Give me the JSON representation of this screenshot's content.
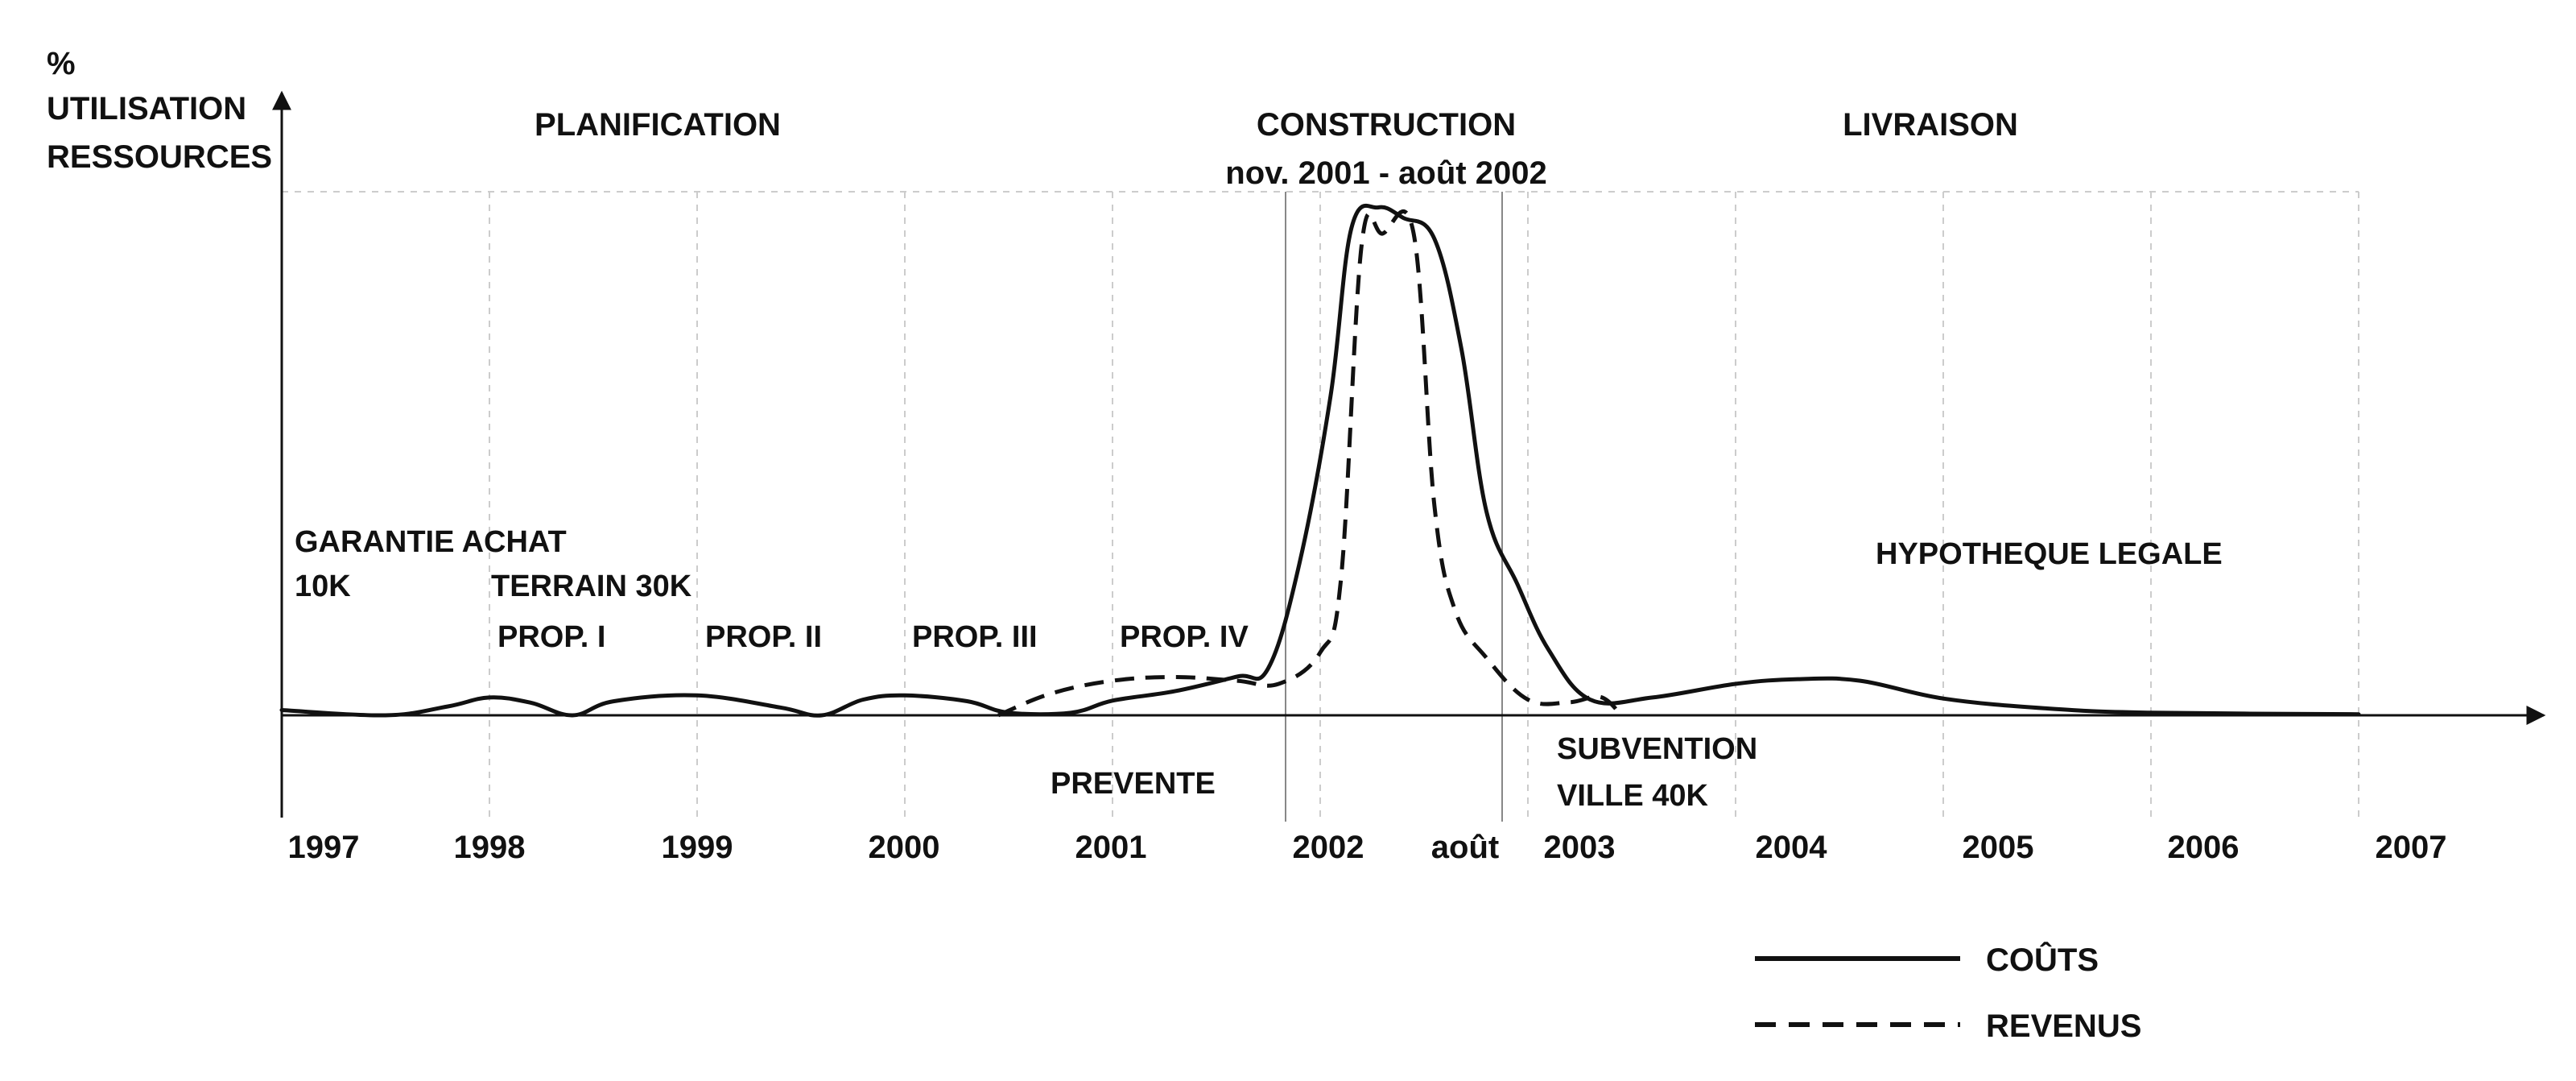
{
  "chart_data": {
    "type": "line",
    "ylabel": [
      "%",
      "UTILISATION",
      "RESSOURCES"
    ],
    "x_ticks": [
      "1997",
      "1998",
      "1999",
      "2000",
      "2001",
      "2002",
      "août",
      "2003",
      "2004",
      "2005",
      "2006",
      "2007"
    ],
    "xlim": [
      1997,
      2007
    ],
    "ylim": [
      0,
      100
    ],
    "grid": true,
    "legend_position": "bottom-right",
    "phases": [
      {
        "label": "PLANIFICATION",
        "sub": ""
      },
      {
        "label": "CONSTRUCTION",
        "sub": "nov. 2001 - août 2002"
      },
      {
        "label": "LIVRAISON",
        "sub": ""
      }
    ],
    "annotations": {
      "garantie_1": "GARANTIE ACHAT",
      "garantie_2": "10K",
      "terrain": "TERRAIN 30K",
      "prop1": "PROP. I",
      "prop2": "PROP. II",
      "prop3": "PROP. III",
      "prop4": "PROP. IV",
      "prevente": "PREVENTE",
      "subvention_1": "SUBVENTION",
      "subvention_2": "VILLE 40K",
      "hypotheque": "HYPOTHEQUE LEGALE"
    },
    "series": [
      {
        "name": "COÛTS",
        "style": "solid",
        "color": "#111111",
        "x": [
          1997.0,
          1997.5,
          1997.8,
          1998.0,
          1998.2,
          1998.4,
          1998.6,
          1999.0,
          1999.4,
          1999.6,
          1999.8,
          2000.0,
          2000.3,
          2000.5,
          2000.8,
          2001.0,
          2001.3,
          2001.6,
          2001.75,
          2001.9,
          2002.05,
          2002.15,
          2002.28,
          2002.4,
          2002.55,
          2002.68,
          2002.8,
          2002.95,
          2003.1,
          2003.3,
          2003.6,
          2004.0,
          2004.3,
          2004.6,
          2005.0,
          2005.5,
          2006.0,
          2007.0
        ],
        "y": [
          1.0,
          0.0,
          1.7,
          3.4,
          2.4,
          0.0,
          2.7,
          3.8,
          1.5,
          0.0,
          3.0,
          3.8,
          2.7,
          0.5,
          0.5,
          2.8,
          4.6,
          7.4,
          9.0,
          29.0,
          61.0,
          93.0,
          97.0,
          95.0,
          91.0,
          70.0,
          39.0,
          25.0,
          12.5,
          3.0,
          3.4,
          6.0,
          6.9,
          6.6,
          3.2,
          1.3,
          0.5,
          0.2
        ]
      },
      {
        "name": "REVENUS",
        "style": "dashed",
        "color": "#111111",
        "x": [
          2000.45,
          2000.7,
          2001.0,
          2001.3,
          2001.6,
          2001.8,
          2002.0,
          2002.1,
          2002.2,
          2002.3,
          2002.45,
          2002.55,
          2002.65,
          2002.8,
          2003.0,
          2003.2,
          2003.35,
          2003.45
        ],
        "y": [
          0.0,
          4.1,
          6.6,
          7.3,
          6.6,
          6.0,
          12.0,
          26.0,
          90.0,
          92.0,
          92.0,
          40.0,
          20.0,
          11.0,
          3.0,
          2.5,
          3.5,
          0.0
        ]
      }
    ]
  }
}
